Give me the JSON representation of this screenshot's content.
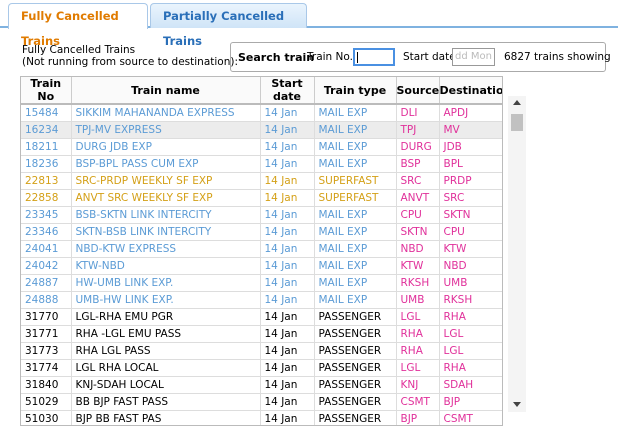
{
  "tabs": [
    "Fully Cancelled Trains",
    "Partially Cancelled Trains"
  ],
  "description": [
    "Fully Cancelled Trains",
    "(Not running from source to destination):"
  ],
  "search": {
    "title": "Search train",
    "train_no_label": "Train No.",
    "start_date_label": "Start date",
    "start_date_placeholder": "dd Mon",
    "count": "6827 trains showing"
  },
  "table": {
    "columns": [
      "Train No",
      "Train name",
      "Start date",
      "Train type",
      "Source",
      "Destination"
    ],
    "place_color": "#e0309a",
    "rows": [
      {
        "color": "#5b9bd5",
        "cells": [
          "15484",
          "SIKKIM MAHANANDA EXPRESS",
          "14 Jan",
          "MAIL EXP",
          "DLI",
          "APDJ"
        ]
      },
      {
        "color": "#5b9bd5",
        "cells": [
          "16234",
          "TPJ-MV EXPRESS",
          "14 Jan",
          "MAIL EXP",
          "TPJ",
          "MV"
        ]
      },
      {
        "color": "#5b9bd5",
        "cells": [
          "18211",
          "DURG JDB EXP",
          "14 Jan",
          "MAIL EXP",
          "DURG",
          "JDB"
        ]
      },
      {
        "color": "#5b9bd5",
        "cells": [
          "18236",
          "BSP-BPL PASS CUM EXP",
          "14 Jan",
          "MAIL EXP",
          "BSP",
          "BPL"
        ]
      },
      {
        "color": "#d4a017",
        "cells": [
          "22813",
          "SRC-PRDP WEEKLY SF EXP",
          "14 Jan",
          "SUPERFAST",
          "SRC",
          "PRDP"
        ]
      },
      {
        "color": "#d4a017",
        "cells": [
          "22858",
          "ANVT SRC WEEKLY SF EXP",
          "14 Jan",
          "SUPERFAST",
          "ANVT",
          "SRC"
        ]
      },
      {
        "color": "#5b9bd5",
        "cells": [
          "23345",
          "BSB-SKTN LINK INTERCITY",
          "14 Jan",
          "MAIL EXP",
          "CPU",
          "SKTN"
        ]
      },
      {
        "color": "#5b9bd5",
        "cells": [
          "23346",
          "SKTN-BSB LINK INTERCITY",
          "14 Jan",
          "MAIL EXP",
          "SKTN",
          "CPU"
        ]
      },
      {
        "color": "#5b9bd5",
        "cells": [
          "24041",
          "NBD-KTW EXPRESS",
          "14 Jan",
          "MAIL EXP",
          "NBD",
          "KTW"
        ]
      },
      {
        "color": "#5b9bd5",
        "cells": [
          "24042",
          "KTW-NBD",
          "14 Jan",
          "MAIL EXP",
          "KTW",
          "NBD"
        ]
      },
      {
        "color": "#5b9bd5",
        "cells": [
          "24887",
          "HW-UMB LINK EXP.",
          "14 Jan",
          "MAIL EXP",
          "RKSH",
          "UMB"
        ]
      },
      {
        "color": "#5b9bd5",
        "cells": [
          "24888",
          "UMB-HW LINK EXP.",
          "14 Jan",
          "MAIL EXP",
          "UMB",
          "RKSH"
        ]
      },
      {
        "color": "#000000",
        "cells": [
          "31770",
          "LGL-RHA EMU PGR",
          "14 Jan",
          "PASSENGER",
          "LGL",
          "RHA"
        ]
      },
      {
        "color": "#000000",
        "cells": [
          "31771",
          "RHA -LGL EMU PASS",
          "14 Jan",
          "PASSENGER",
          "RHA",
          "LGL"
        ]
      },
      {
        "color": "#000000",
        "cells": [
          "31773",
          "RHA LGL PASS",
          "14 Jan",
          "PASSENGER",
          "RHA",
          "LGL"
        ]
      },
      {
        "color": "#000000",
        "cells": [
          "31774",
          "LGL RHA LOCAL",
          "14 Jan",
          "PASSENGER",
          "LGL",
          "RHA"
        ]
      },
      {
        "color": "#000000",
        "cells": [
          "31840",
          "KNJ-SDAH LOCAL",
          "14 Jan",
          "PASSENGER",
          "KNJ",
          "SDAH"
        ]
      },
      {
        "color": "#000000",
        "cells": [
          "51029",
          "BB BJP FAST PASS",
          "14 Jan",
          "PASSENGER",
          "CSMT",
          "BJP"
        ]
      },
      {
        "color": "#000000",
        "cells": [
          "51030",
          "BJP BB FAST PAS",
          "14 Jan",
          "PASSENGER",
          "BJP",
          "CSMT"
        ]
      }
    ]
  }
}
